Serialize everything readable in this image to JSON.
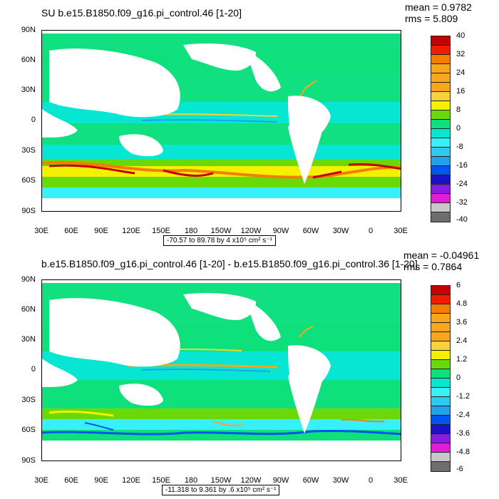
{
  "panels": [
    {
      "title": "SU b.e15.B1850.f09_g16.pi_control.46 [1-20]",
      "mean": "mean = 0.9782",
      "rms": "rms = 5.809",
      "range_text": "-70.57 to 89.78 by 4 x10⁵ cm² s⁻¹",
      "legend_labels": [
        "40",
        "32",
        "24",
        "16",
        "8",
        "0",
        "-8",
        "-16",
        "-24",
        "-32",
        "-40"
      ]
    },
    {
      "title": "b.e15.B1850.f09_g16.pi_control.46 [1-20] - b.e15.B1850.f09_g16.pi_control.36 [1-20]",
      "mean": "mean = -0.04961",
      "rms": "rms = 0.7864",
      "range_text": "-11.318 to 9.361 by .6 x10⁵ cm² s⁻¹",
      "legend_labels": [
        "6",
        "4.8",
        "3.6",
        "2.4",
        "1.2",
        "0",
        "-1.2",
        "-2.4",
        "-3.6",
        "-4.8",
        "-6"
      ]
    }
  ],
  "y_labels": [
    "90N",
    "60N",
    "30N",
    "0",
    "30S",
    "60S",
    "90S"
  ],
  "x_labels": [
    "30E",
    "60E",
    "90E",
    "120E",
    "150E",
    "180",
    "150W",
    "120W",
    "90W",
    "60W",
    "30W",
    "0",
    "30E"
  ],
  "colors": {
    "palette": [
      "#c40000",
      "#ee1c00",
      "#f57d00",
      "#f8a71c",
      "#f8d23a",
      "#f3f100",
      "#6ad90a",
      "#0ee07c",
      "#06e6d2",
      "#38f0f7",
      "#30c9f0",
      "#22a1ea",
      "#0054f0",
      "#1a11c8",
      "#8a1be0",
      "#e41cd6",
      "#c8c8c8",
      "#6e6e6e"
    ],
    "land": "#ffffff",
    "ocean_base": "#10e080"
  }
}
